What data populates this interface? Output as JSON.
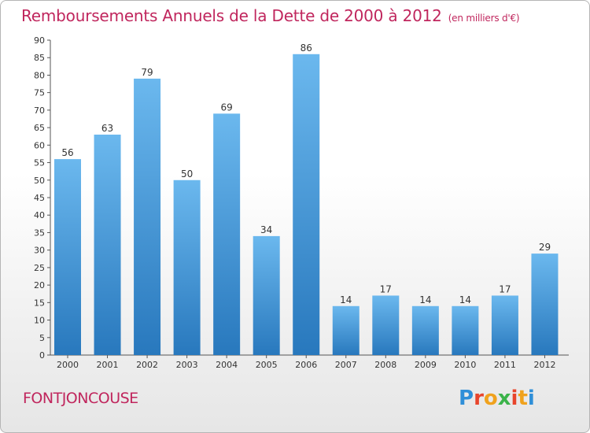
{
  "header": {
    "title": "Remboursements Annuels de la Dette de 2000 à 2012",
    "unit": "(en milliers d'€)"
  },
  "footer": {
    "city": "FONTJONCOUSE",
    "brand": [
      "P",
      "r",
      "o",
      "x",
      "i",
      "t",
      "i"
    ],
    "brand_colors": [
      "#2f8fd8",
      "#e8452c",
      "#f0a21d",
      "#3bb34a",
      "#e8452c",
      "#f0a21d",
      "#2f8fd8"
    ]
  },
  "colors": {
    "bar_top": "#6bb8ee",
    "bar_bottom": "#2878bd",
    "text": "#333333",
    "title": "#c0265d"
  },
  "chart_data": {
    "type": "bar",
    "title": "Remboursements Annuels de la Dette de 2000 à 2012",
    "subtitle": "(en milliers d'€)",
    "categories": [
      "2000",
      "2001",
      "2002",
      "2003",
      "2004",
      "2005",
      "2006",
      "2007",
      "2008",
      "2009",
      "2010",
      "2011",
      "2012"
    ],
    "values": [
      56,
      63,
      79,
      50,
      69,
      34,
      86,
      14,
      17,
      14,
      14,
      17,
      29
    ],
    "ylim": [
      0,
      90
    ],
    "yticks": [
      0,
      5,
      10,
      15,
      20,
      25,
      30,
      35,
      40,
      45,
      50,
      55,
      60,
      65,
      70,
      75,
      80,
      85,
      90
    ],
    "xlabel": "",
    "ylabel": "",
    "grid": false
  }
}
